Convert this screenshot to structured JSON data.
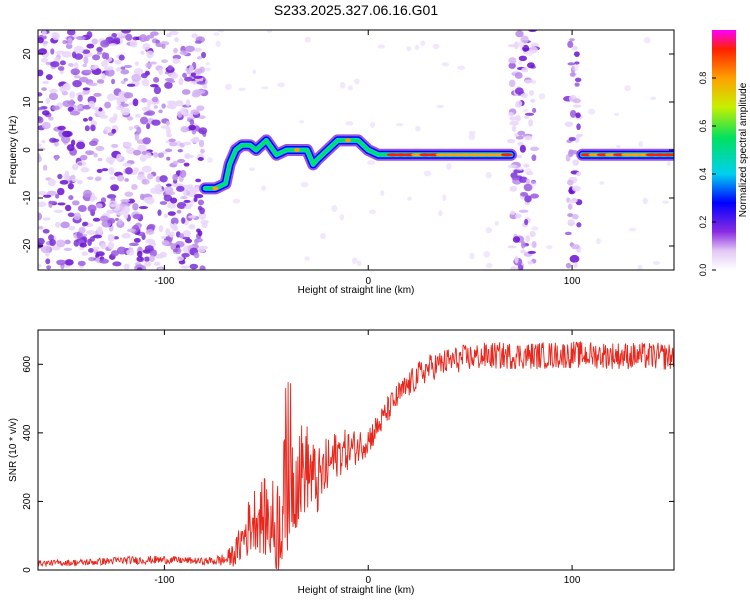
{
  "title": "S233.2025.327.06.16.G01",
  "chart_data": [
    {
      "type": "heatmap",
      "title": "S233.2025.327.06.16.G01",
      "xlabel": "Height of straight line (km)",
      "ylabel": "Frequency (Hz)",
      "xlim": [
        -162,
        150
      ],
      "ylim": [
        -25,
        25
      ],
      "xticks": [
        -100,
        0,
        100
      ],
      "yticks": [
        -20,
        -10,
        0,
        10,
        20
      ],
      "colorbar": {
        "label": "Normalized spectral amplitude",
        "range": [
          0,
          1
        ],
        "ticks": [
          0.0,
          0.2,
          0.4,
          0.6,
          0.8
        ]
      },
      "ridge": {
        "x": [
          -80,
          -75,
          -70,
          -68,
          -65,
          -62,
          -58,
          -55,
          -50,
          -45,
          -40,
          -35,
          -30,
          -27,
          -25,
          -20,
          -15,
          -10,
          -5,
          0,
          5,
          10,
          20,
          30,
          40,
          50,
          60,
          70
        ],
        "y": [
          -8,
          -8,
          -7,
          -3,
          0,
          1,
          1,
          0,
          2,
          -1,
          0,
          0,
          0,
          -3,
          -2,
          0,
          2,
          2,
          2,
          0,
          -1,
          -1,
          -1,
          -1,
          -1,
          -1,
          -1,
          -1
        ]
      },
      "ridge2": {
        "x": [
          105,
          110,
          120,
          130,
          140,
          150
        ],
        "y": [
          -1,
          -1,
          -1,
          -1,
          -1,
          -1
        ]
      },
      "noise_regions": [
        [
          -162,
          -80
        ],
        [
          70,
          82
        ],
        [
          98,
          104
        ]
      ]
    },
    {
      "type": "line",
      "xlabel": "Height of straight line (km)",
      "ylabel": "SNR (10 * v/v)",
      "xlim": [
        -162,
        150
      ],
      "ylim": [
        0,
        700
      ],
      "xticks": [
        -100,
        0,
        100
      ],
      "yticks": [
        0,
        200,
        400,
        600
      ],
      "series": [
        {
          "name": "SNR",
          "color": "#e8261c",
          "x": [
            -162,
            -140,
            -120,
            -100,
            -90,
            -80,
            -70,
            -65,
            -60,
            -55,
            -50,
            -45,
            -40,
            -35,
            -30,
            -25,
            -20,
            -15,
            -10,
            -5,
            0,
            5,
            10,
            15,
            20,
            25,
            30,
            40,
            50,
            60,
            70,
            80,
            100,
            120,
            150
          ],
          "y": [
            20,
            22,
            28,
            30,
            28,
            25,
            30,
            50,
            110,
            160,
            150,
            120,
            230,
            280,
            300,
            250,
            300,
            340,
            350,
            360,
            380,
            420,
            470,
            510,
            540,
            570,
            590,
            610,
            620,
            625,
            625,
            625,
            628,
            626,
            622
          ],
          "noise_amplitude": [
            8,
            10,
            12,
            12,
            10,
            10,
            20,
            40,
            80,
            100,
            120,
            150,
            200,
            160,
            130,
            100,
            90,
            70,
            60,
            50,
            45,
            40,
            40,
            40,
            40,
            40,
            40,
            40,
            40,
            40,
            40,
            40,
            40,
            40,
            40
          ]
        }
      ]
    }
  ]
}
